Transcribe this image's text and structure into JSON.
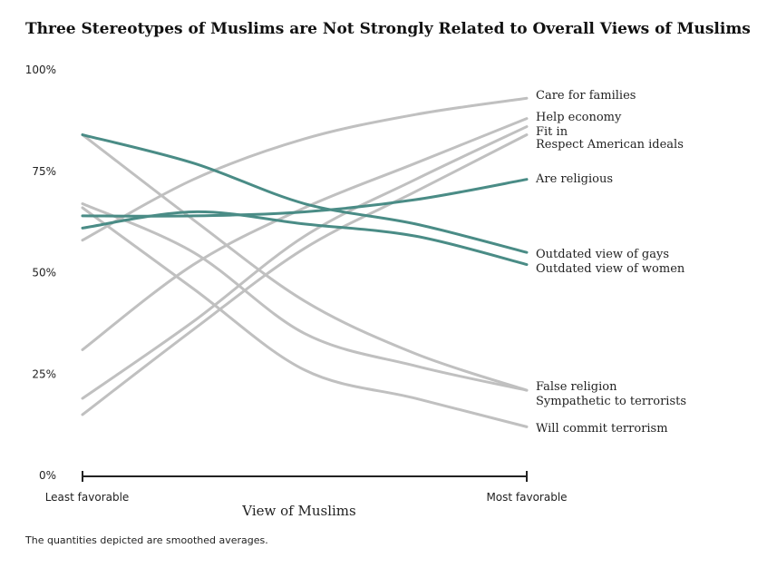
{
  "chart_data": {
    "type": "line",
    "title": "Three Stereotypes of Muslims are Not Strongly Related to Overall Views of Muslims",
    "xlabel": "View of Muslims",
    "ylabel": "",
    "x_tick_labels": [
      "Least favorable",
      "Most favorable"
    ],
    "x": [
      0,
      0.25,
      0.5,
      0.75,
      1
    ],
    "y_ticks": [
      "0%",
      "25%",
      "50%",
      "75%",
      "100%"
    ],
    "ylim": [
      0,
      100
    ],
    "note": "The quantities depicted are smoothed averages.",
    "colors": {
      "grey": "#c0c0c0",
      "teal": "#4a8c86"
    },
    "series": [
      {
        "name": "Care for families",
        "color": "grey",
        "values": [
          58,
          73,
          83,
          89,
          93
        ]
      },
      {
        "name": "Help economy",
        "color": "grey",
        "values": [
          31,
          52,
          66,
          77,
          88
        ]
      },
      {
        "name": "Fit in",
        "color": "grey",
        "values": [
          19,
          38,
          59,
          73,
          86
        ]
      },
      {
        "name": "Respect American ideals",
        "color": "grey",
        "values": [
          15,
          36,
          56,
          70,
          84
        ]
      },
      {
        "name": "Are religious",
        "color": "teal",
        "values": [
          64,
          64,
          65,
          68,
          73
        ]
      },
      {
        "name": "Outdated view of gays",
        "color": "teal",
        "values": [
          84,
          77,
          67,
          62,
          55
        ]
      },
      {
        "name": "Outdated view of women",
        "color": "teal",
        "values": [
          61,
          65,
          62,
          59,
          52
        ]
      },
      {
        "name": "False religion",
        "color": "grey",
        "values": [
          84,
          63,
          43,
          30,
          21
        ]
      },
      {
        "name": "Sympathetic to terrorists",
        "color": "grey",
        "values": [
          67,
          55,
          35,
          27,
          21
        ]
      },
      {
        "name": "Will commit terrorism",
        "color": "grey",
        "values": [
          66,
          46,
          26,
          19,
          12
        ]
      }
    ],
    "end_labels": [
      "Care for families",
      "Help economy",
      "Fit in",
      "Respect American ideals",
      "Are religious",
      "Outdated view of gays",
      "Outdated view of women",
      "False religion",
      "Sympathetic to terrorists",
      "Will commit terrorism"
    ]
  }
}
